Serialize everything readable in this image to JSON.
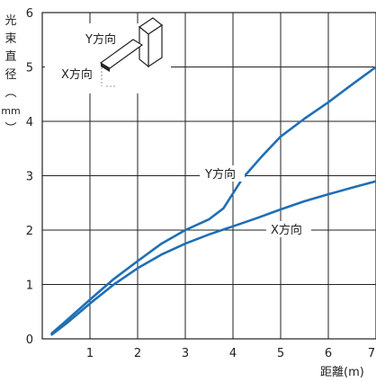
{
  "chart_data": {
    "type": "line",
    "ylabel_chars": [
      "光",
      "束",
      "直",
      "径",
      "︵",
      "mm",
      "︶"
    ],
    "xlabel": "距離(m)",
    "xlim": [
      0,
      7
    ],
    "ylim": [
      0,
      6
    ],
    "x_ticks": [
      "1",
      "2",
      "3",
      "4",
      "5",
      "6",
      "7"
    ],
    "y_ticks": [
      "0",
      "1",
      "2",
      "3",
      "4",
      "5",
      "6"
    ],
    "grid": true,
    "line_color": "#1f6fb5",
    "series": [
      {
        "name": "Y方向",
        "x": [
          0.2,
          0.5,
          1.0,
          1.5,
          2.0,
          2.5,
          3.0,
          3.5,
          3.8,
          4.2,
          4.6,
          5.0,
          5.5,
          6.0,
          6.5,
          7.0
        ],
        "y": [
          0.1,
          0.33,
          0.72,
          1.1,
          1.43,
          1.75,
          2.0,
          2.2,
          2.4,
          2.95,
          3.35,
          3.72,
          4.05,
          4.35,
          4.68,
          5.0
        ]
      },
      {
        "name": "X方向",
        "x": [
          0.2,
          0.5,
          1.0,
          1.5,
          2.0,
          2.5,
          3.0,
          3.5,
          4.0,
          4.5,
          5.0,
          5.5,
          6.0,
          6.5,
          7.0
        ],
        "y": [
          0.08,
          0.28,
          0.65,
          1.0,
          1.3,
          1.55,
          1.75,
          1.92,
          2.07,
          2.22,
          2.38,
          2.53,
          2.66,
          2.78,
          2.9
        ]
      }
    ],
    "inset": {
      "label_y": "Y方向",
      "label_x": "X方向"
    }
  }
}
